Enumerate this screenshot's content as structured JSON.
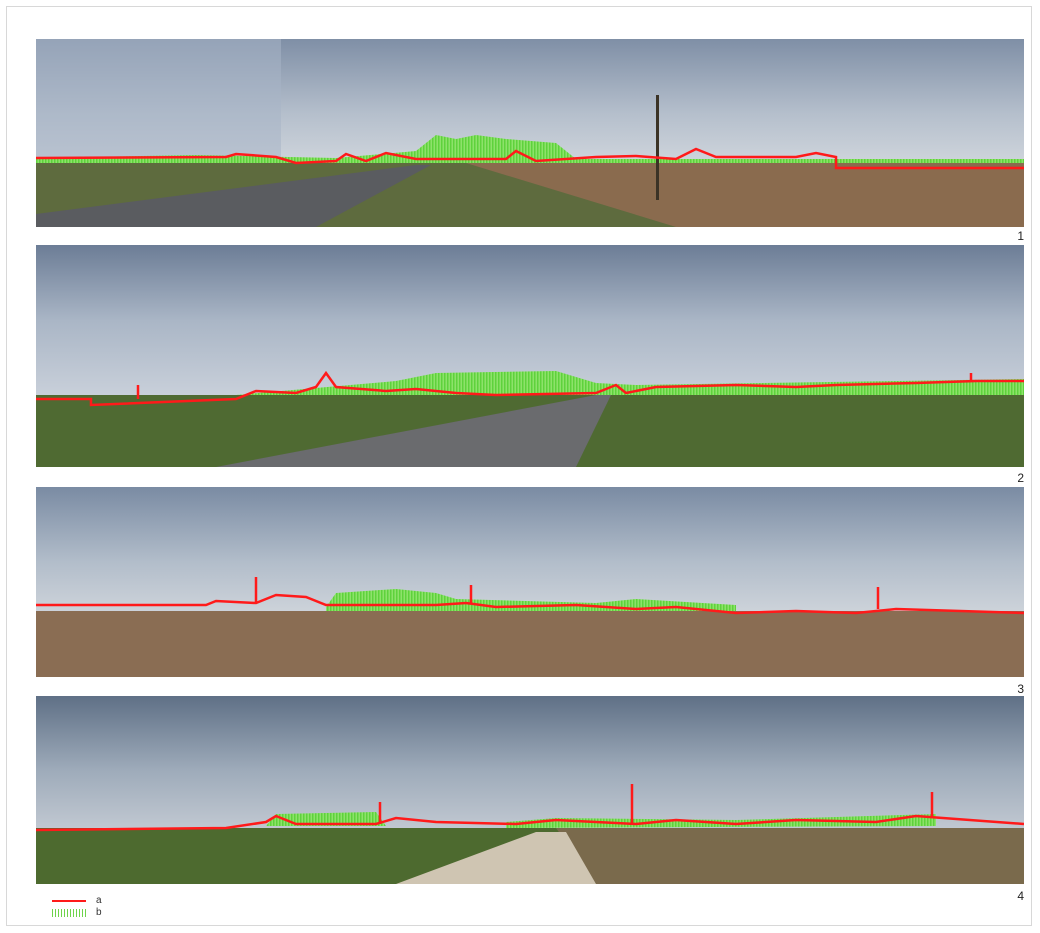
{
  "panels": [
    {
      "number": "1"
    },
    {
      "number": "2"
    },
    {
      "number": "3"
    },
    {
      "number": "4"
    }
  ],
  "legend": {
    "items": [
      {
        "key": "a",
        "symbol": "red-line",
        "color": "#ff1a1a"
      },
      {
        "key": "b",
        "symbol": "green-hatch",
        "color": "#6fd44c"
      }
    ]
  }
}
